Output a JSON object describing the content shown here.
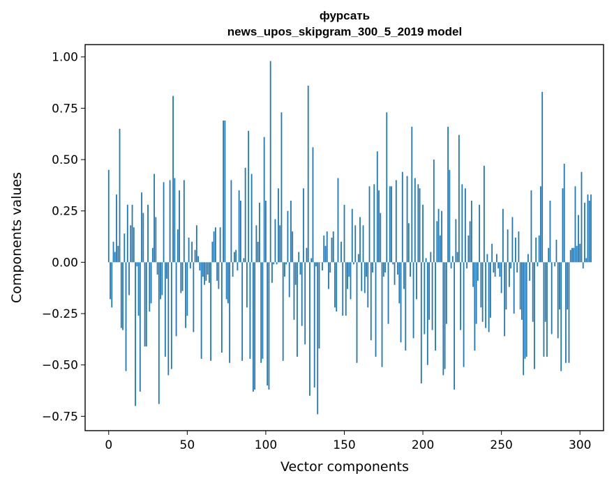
{
  "chart_data": {
    "type": "bar",
    "title": "фурсать",
    "subtitle": "news_upos_skipgram_300_5_2019 model",
    "xlabel": "Vector components",
    "ylabel": "Components values",
    "xlim": [
      -15,
      315
    ],
    "ylim": [
      -0.82,
      1.06
    ],
    "x_ticks": [
      0,
      50,
      100,
      150,
      200,
      250,
      300
    ],
    "x_tick_labels": [
      "0",
      "50",
      "100",
      "150",
      "200",
      "250",
      "300"
    ],
    "y_ticks": [
      -0.75,
      -0.5,
      -0.25,
      0.0,
      0.25,
      0.5,
      0.75,
      1.0
    ],
    "y_tick_labels": [
      "−0.75",
      "−0.50",
      "−0.25",
      "0.00",
      "0.25",
      "0.50",
      "0.75",
      "1.00"
    ],
    "grid": false,
    "legend": "none",
    "color": "#1f77b4",
    "values": [
      0.45,
      -0.18,
      -0.22,
      0.1,
      0.05,
      0.33,
      0.08,
      0.65,
      -0.32,
      -0.33,
      0.14,
      -0.53,
      0.28,
      -0.16,
      0.18,
      0.28,
      0.17,
      -0.7,
      -0.02,
      -0.26,
      -0.63,
      0.34,
      0.24,
      -0.41,
      -0.41,
      0.28,
      -0.24,
      -0.2,
      0.07,
      0.43,
      0.22,
      -0.06,
      -0.69,
      -0.18,
      -0.16,
      0.39,
      -0.46,
      -0.08,
      -0.55,
      0.4,
      -0.52,
      0.81,
      0.41,
      -0.36,
      0.16,
      0.35,
      -0.15,
      -0.14,
      0.4,
      -0.32,
      -0.26,
      0.12,
      -0.03,
      0.1,
      -0.34,
      0.06,
      0.18,
      0.03,
      -0.04,
      -0.47,
      -0.07,
      -0.11,
      -0.09,
      -0.06,
      -0.1,
      -0.48,
      0.1,
      0.15,
      0.17,
      -0.09,
      -0.13,
      0.17,
      -0.44,
      0.69,
      0.69,
      -0.18,
      -0.2,
      -0.49,
      0.4,
      -0.07,
      0.05,
      0.06,
      -0.04,
      0.35,
      0.3,
      -0.48,
      0.02,
      0.46,
      -0.22,
      0.64,
      -0.47,
      0.43,
      -0.63,
      -0.62,
      0.18,
      0.1,
      0.29,
      -0.49,
      -0.47,
      0.61,
      0.3,
      -0.6,
      -0.62,
      0.98,
      -0.1,
      -0.01,
      0.21,
      -0.01,
      0.36,
      0.18,
      0.73,
      -0.48,
      -0.07,
      -0.01,
      0.25,
      -0.17,
      0.3,
      0.15,
      -0.28,
      -0.11,
      -0.46,
      0.05,
      -0.06,
      -0.31,
      0.36,
      -0.4,
      0.07,
      0.86,
      -0.65,
      0.02,
      0.56,
      -0.61,
      -0.02,
      -0.74,
      -0.42,
      0.0,
      -0.04,
      0.13,
      0.08,
      0.15,
      -0.13,
      -0.05,
      0.12,
      0.15,
      -0.22,
      -0.24,
      0.41,
      0.0,
      0.1,
      -0.26,
      0.28,
      -0.26,
      -0.13,
      -0.07,
      -0.18,
      0.26,
      -0.01,
      0.18,
      -0.49,
      0.04,
      0.22,
      -0.14,
      0.18,
      -0.15,
      -0.07,
      -0.22,
      0.37,
      -0.38,
      -0.05,
      0.38,
      -0.46,
      0.54,
      0.35,
      0.24,
      -0.51,
      -0.07,
      -0.05,
      0.73,
      -0.3,
      0.37,
      0.37,
      -0.01,
      -0.11,
      0.4,
      -0.06,
      -0.2,
      -0.39,
      0.44,
      -0.13,
      -0.43,
      0.42,
      0.19,
      -0.07,
      0.66,
      -0.37,
      0.41,
      -0.18,
      0.38,
      0.36,
      -0.59,
      0.28,
      -0.35,
      0.02,
      -0.5,
      -0.28,
      0.05,
      -0.33,
      0.5,
      -0.43,
      0.2,
      0.26,
      0.13,
      0.25,
      -0.55,
      -0.52,
      -0.3,
      0.66,
      0.45,
      -0.03,
      0.03,
      -0.62,
      0.21,
      0.05,
      0.62,
      -0.33,
      0.38,
      -0.51,
      0.36,
      -0.03,
      0.13,
      0.2,
      0.3,
      -0.12,
      -0.43,
      -0.3,
      -0.09,
      0.28,
      -0.22,
      -0.29,
      0.47,
      -0.32,
      0.04,
      -0.34,
      -0.27,
      0.09,
      -0.05,
      -0.07,
      0.04,
      -0.03,
      -0.07,
      -0.15,
      0.26,
      -0.36,
      -0.23,
      0.16,
      -0.12,
      -0.03,
      0.22,
      -0.25,
      0.12,
      -0.05,
      0.15,
      -0.23,
      -0.28,
      -0.55,
      -0.47,
      -0.46,
      0.04,
      -0.09,
      0.35,
      -0.29,
      -0.52,
      0.12,
      -0.02,
      0.13,
      0.37,
      0.83,
      -0.46,
      -0.29,
      -0.46,
      0.07,
      0.3,
      -0.35,
      0.0,
      -0.02,
      0.11,
      -0.37,
      -0.23,
      -0.53,
      0.36,
      0.48,
      -0.49,
      -0.23,
      -0.49,
      0.06,
      0.07,
      0.07,
      0.37,
      0.08,
      0.23,
      0.09,
      0.44,
      -0.03,
      0.29,
      0.02,
      0.33,
      0.3,
      0.33
    ]
  }
}
